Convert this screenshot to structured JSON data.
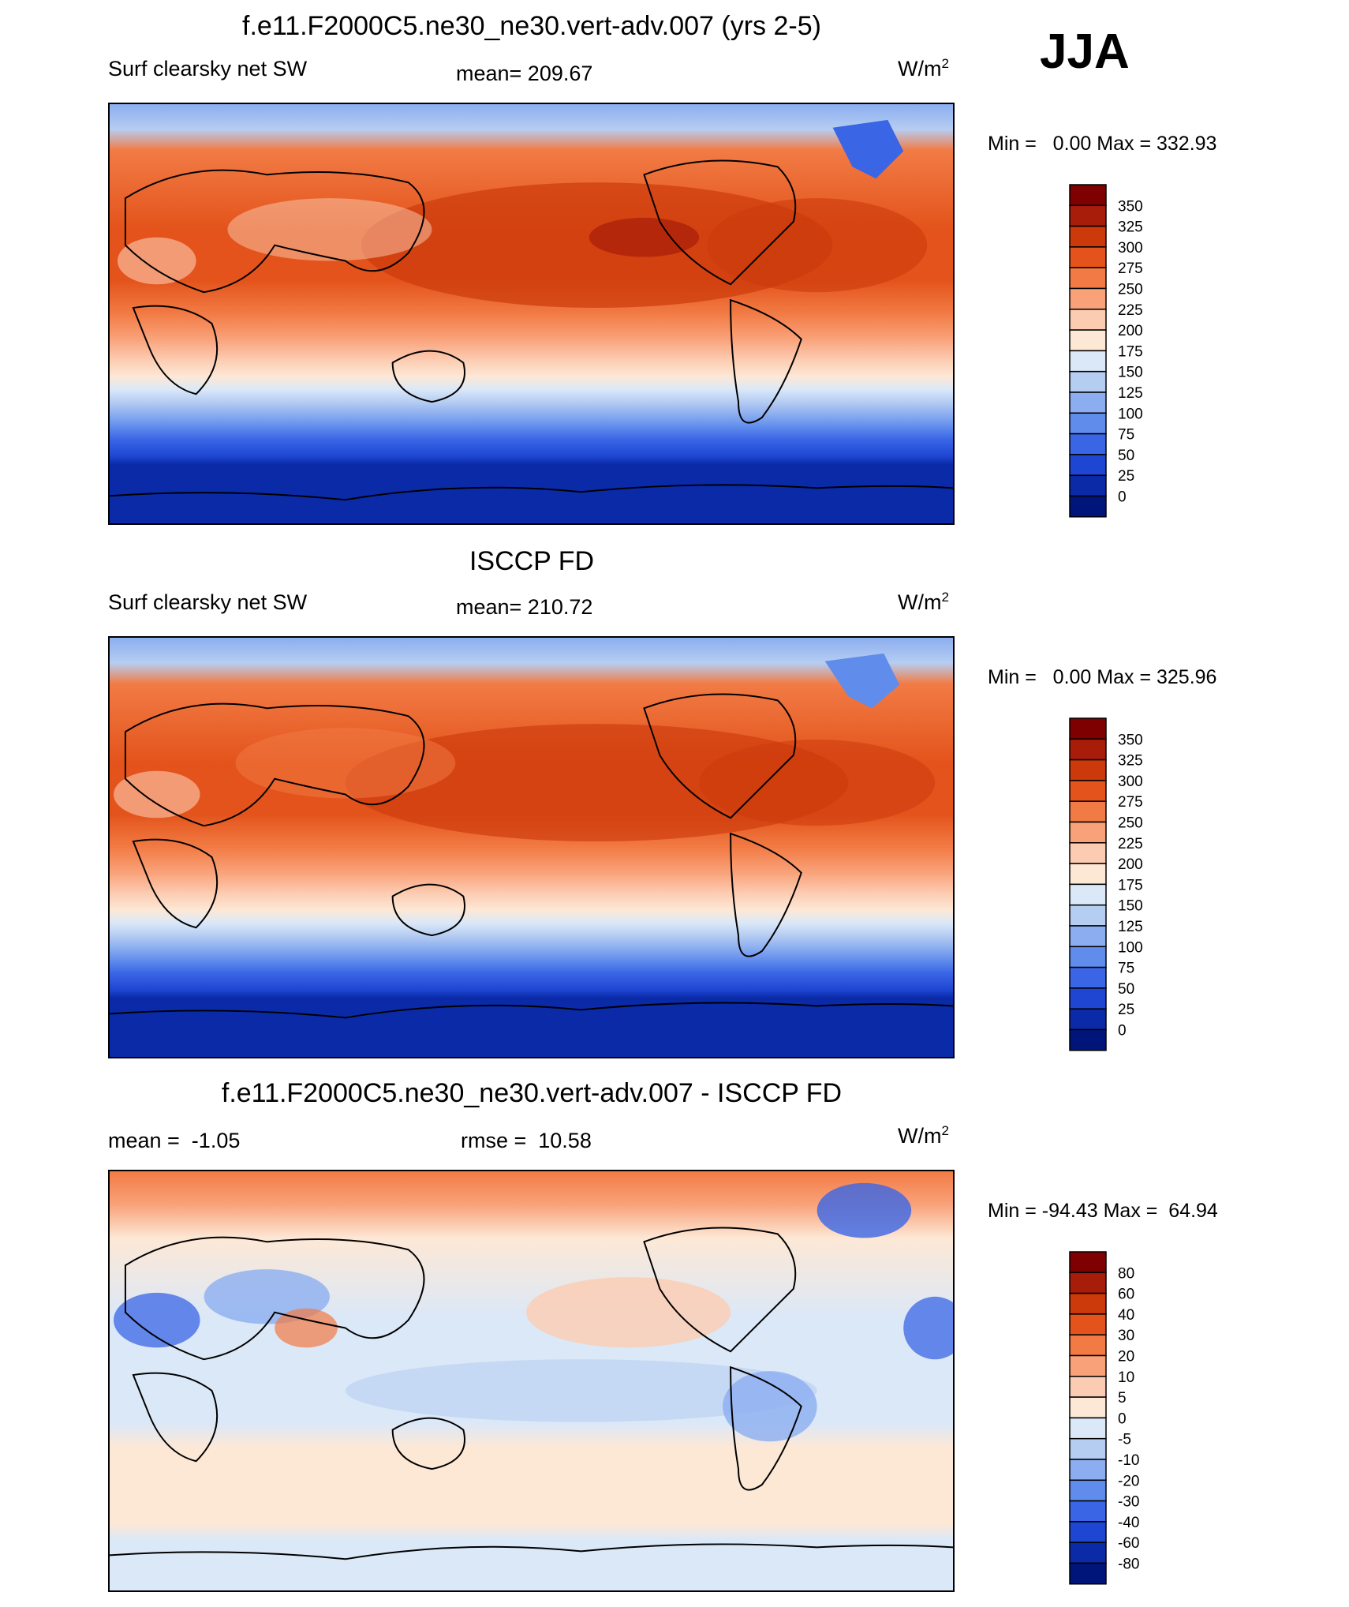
{
  "season": "JJA",
  "panels": [
    {
      "id": "model",
      "title": "f.e11.F2000C5.ne30_ne30.vert-adv.007 (yrs 2-5)",
      "left_label": "Surf clearsky net SW",
      "center_label": "mean= 209.67",
      "units_base": "W/m",
      "units_exp": "2",
      "minmax": "Min =   0.00 Max = 332.93",
      "colorbar": {
        "labels": [
          "350",
          "325",
          "300",
          "275",
          "250",
          "225",
          "200",
          "175",
          "150",
          "125",
          "100",
          "75",
          "50",
          "25",
          "0"
        ],
        "colors": [
          "#7f0000",
          "#a81c0a",
          "#cc3a0c",
          "#e3531b",
          "#f27b45",
          "#f9a27a",
          "#fcccb2",
          "#fde8d6",
          "#dbe8f8",
          "#b6cdf2",
          "#8caef0",
          "#608cec",
          "#3a66e6",
          "#1e46d2",
          "#0a2aa8",
          "#00157a"
        ]
      }
    },
    {
      "id": "obs",
      "title": "ISCCP FD",
      "left_label": "Surf clearsky net SW",
      "center_label": "mean= 210.72",
      "units_base": "W/m",
      "units_exp": "2",
      "minmax": "Min =   0.00 Max = 325.96",
      "colorbar": {
        "labels": [
          "350",
          "325",
          "300",
          "275",
          "250",
          "225",
          "200",
          "175",
          "150",
          "125",
          "100",
          "75",
          "50",
          "25",
          "0"
        ],
        "colors": [
          "#7f0000",
          "#a81c0a",
          "#cc3a0c",
          "#e3531b",
          "#f27b45",
          "#f9a27a",
          "#fcccb2",
          "#fde8d6",
          "#dbe8f8",
          "#b6cdf2",
          "#8caef0",
          "#608cec",
          "#3a66e6",
          "#1e46d2",
          "#0a2aa8",
          "#00157a"
        ]
      }
    },
    {
      "id": "diff",
      "title": "f.e11.F2000C5.ne30_ne30.vert-adv.007 - ISCCP FD",
      "left_label": "mean =  -1.05",
      "center_label": "rmse =  10.58",
      "units_base": "W/m",
      "units_exp": "2",
      "minmax": "Min = -94.43 Max =  64.94",
      "colorbar": {
        "labels": [
          "80",
          "60",
          "40",
          "30",
          "20",
          "10",
          "5",
          "0",
          "-5",
          "-10",
          "-20",
          "-30",
          "-40",
          "-60",
          "-80"
        ],
        "colors": [
          "#7f0000",
          "#a81c0a",
          "#cc3a0c",
          "#e3531b",
          "#f27b45",
          "#f9a27a",
          "#fcccb2",
          "#fde8d6",
          "#dbe8f8",
          "#b6cdf2",
          "#8caef0",
          "#608cec",
          "#3a66e6",
          "#1e46d2",
          "#0a2aa8",
          "#00157a"
        ]
      }
    }
  ],
  "chart_data": [
    {
      "type": "heatmap",
      "title": "f.e11.F2000C5.ne30_ne30.vert-adv.007 (yrs 2-5)",
      "variable": "Surf clearsky net SW",
      "units": "W/m2",
      "mean": 209.67,
      "min": 0.0,
      "max": 332.93,
      "contour_levels": [
        0,
        25,
        50,
        75,
        100,
        125,
        150,
        175,
        200,
        225,
        250,
        275,
        300,
        325,
        350
      ],
      "colorbar_placement": "right"
    },
    {
      "type": "heatmap",
      "title": "ISCCP FD",
      "variable": "Surf clearsky net SW",
      "units": "W/m2",
      "mean": 210.72,
      "min": 0.0,
      "max": 325.96,
      "contour_levels": [
        0,
        25,
        50,
        75,
        100,
        125,
        150,
        175,
        200,
        225,
        250,
        275,
        300,
        325,
        350
      ],
      "colorbar_placement": "right"
    },
    {
      "type": "heatmap",
      "title": "f.e11.F2000C5.ne30_ne30.vert-adv.007 - ISCCP FD",
      "units": "W/m2",
      "mean": -1.05,
      "rmse": 10.58,
      "min": -94.43,
      "max": 64.94,
      "contour_levels": [
        -80,
        -60,
        -40,
        -30,
        -20,
        -10,
        -5,
        0,
        5,
        10,
        20,
        30,
        40,
        60,
        80
      ],
      "colorbar_placement": "right"
    }
  ]
}
